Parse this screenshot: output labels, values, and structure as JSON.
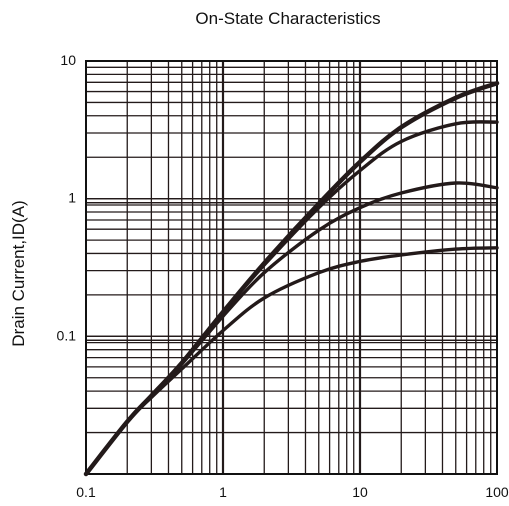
{
  "chart_data": {
    "type": "line",
    "title": "On-State  Characteristics",
    "xlabel": "",
    "ylabel": "Drain Current,ID(A)",
    "x_scale": "log",
    "y_scale": "log",
    "xlim": [
      0.1,
      100
    ],
    "ylim": [
      0.01,
      10
    ],
    "x_ticks": [
      "0.1",
      "1",
      "10",
      "100"
    ],
    "y_ticks": [
      "0.1",
      "1",
      "10"
    ],
    "grid": true,
    "line_color": "#231a1a",
    "series": [
      {
        "x": [
          0.1,
          0.2,
          0.3,
          0.5,
          1,
          2,
          5,
          10,
          20,
          50,
          100
        ],
        "y": [
          0.01,
          0.024,
          0.037,
          0.064,
          0.15,
          0.34,
          0.92,
          1.85,
          3.3,
          5.4,
          6.9
        ]
      },
      {
        "x": [
          0.1,
          0.2,
          0.3,
          0.5,
          1,
          2,
          5,
          10,
          20,
          50,
          100
        ],
        "y": [
          0.01,
          0.024,
          0.037,
          0.064,
          0.15,
          0.33,
          0.86,
          1.6,
          2.6,
          3.5,
          3.6
        ]
      },
      {
        "x": [
          0.1,
          0.2,
          0.3,
          0.5,
          1,
          2,
          5,
          10,
          20,
          50,
          100
        ],
        "y": [
          0.01,
          0.024,
          0.037,
          0.063,
          0.14,
          0.29,
          0.59,
          0.86,
          1.1,
          1.3,
          1.2
        ]
      },
      {
        "x": [
          0.1,
          0.2,
          0.3,
          0.5,
          1,
          2,
          5,
          10,
          20,
          50,
          100
        ],
        "y": [
          0.01,
          0.024,
          0.036,
          0.058,
          0.11,
          0.19,
          0.29,
          0.35,
          0.39,
          0.43,
          0.44
        ]
      }
    ]
  }
}
